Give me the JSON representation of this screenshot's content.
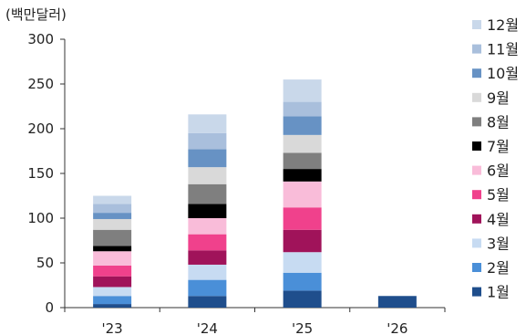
{
  "chart_data": {
    "type": "bar",
    "stacked": true,
    "unit_label": "(백만달러)",
    "categories": [
      "'23",
      "'24",
      "'25",
      "'26"
    ],
    "yticks": [
      0,
      50,
      100,
      150,
      200,
      250,
      300
    ],
    "ylim": [
      0,
      300
    ],
    "grid": false,
    "legend_position": "right",
    "series": [
      {
        "name": "1월",
        "color": "#1f4e8c",
        "values": [
          4,
          13,
          19,
          13
        ]
      },
      {
        "name": "2월",
        "color": "#4a8fd8",
        "values": [
          9,
          18,
          20,
          0
        ]
      },
      {
        "name": "3월",
        "color": "#c7dbf2",
        "values": [
          10,
          17,
          23,
          0
        ]
      },
      {
        "name": "4월",
        "color": "#a0135a",
        "values": [
          12,
          16,
          25,
          0
        ]
      },
      {
        "name": "5월",
        "color": "#f0418c",
        "values": [
          12,
          18,
          25,
          0
        ]
      },
      {
        "name": "6월",
        "color": "#f9bcd9",
        "values": [
          16,
          18,
          29,
          0
        ]
      },
      {
        "name": "7월",
        "color": "#000000",
        "values": [
          6,
          16,
          14,
          0
        ]
      },
      {
        "name": "8월",
        "color": "#7f7f7f",
        "values": [
          18,
          22,
          18,
          0
        ]
      },
      {
        "name": "9월",
        "color": "#d9d9d9",
        "values": [
          12,
          19,
          20,
          0
        ]
      },
      {
        "name": "10월",
        "color": "#6792c4",
        "values": [
          7,
          20,
          21,
          0
        ]
      },
      {
        "name": "11월",
        "color": "#a9bfdc",
        "values": [
          10,
          18,
          16,
          0
        ]
      },
      {
        "name": "12월",
        "color": "#c9d8ea",
        "values": [
          9,
          21,
          25,
          0
        ]
      }
    ]
  }
}
